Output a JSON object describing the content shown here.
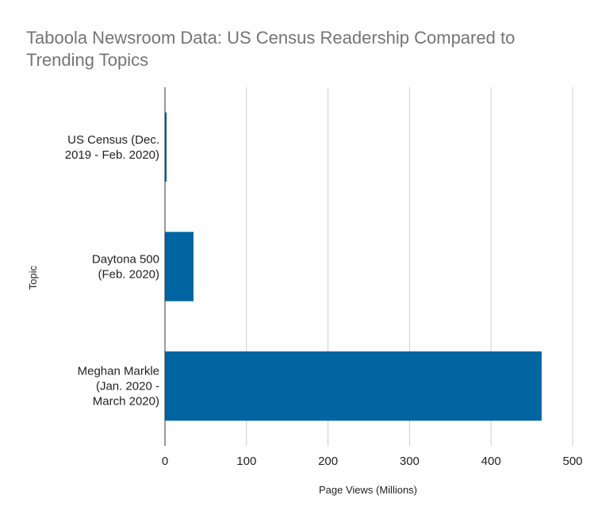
{
  "chart_data": {
    "type": "bar",
    "orientation": "horizontal",
    "title": "Taboola Newsroom Data: US Census Readership Compared to Trending Topics",
    "xlabel": "Page Views (Millions)",
    "ylabel": "Topic",
    "xlim": [
      0,
      500
    ],
    "xticks": [
      0,
      100,
      200,
      300,
      400,
      500
    ],
    "grid": "vertical",
    "legend": "none",
    "bar_color": "#0065A1",
    "categories": [
      "US Census (Dec. 2019 - Feb. 2020)",
      "Daytona 500 (Feb. 2020)",
      "Meghan Markle (Jan. 2020 - March 2020)"
    ],
    "category_lines": [
      [
        "US Census (Dec.",
        "2019 - Feb. 2020)"
      ],
      [
        "Daytona 500",
        "(Feb. 2020)"
      ],
      [
        "Meghan Markle",
        "(Jan. 2020 -",
        "March 2020)"
      ]
    ],
    "values": [
      2,
      35,
      462
    ]
  }
}
